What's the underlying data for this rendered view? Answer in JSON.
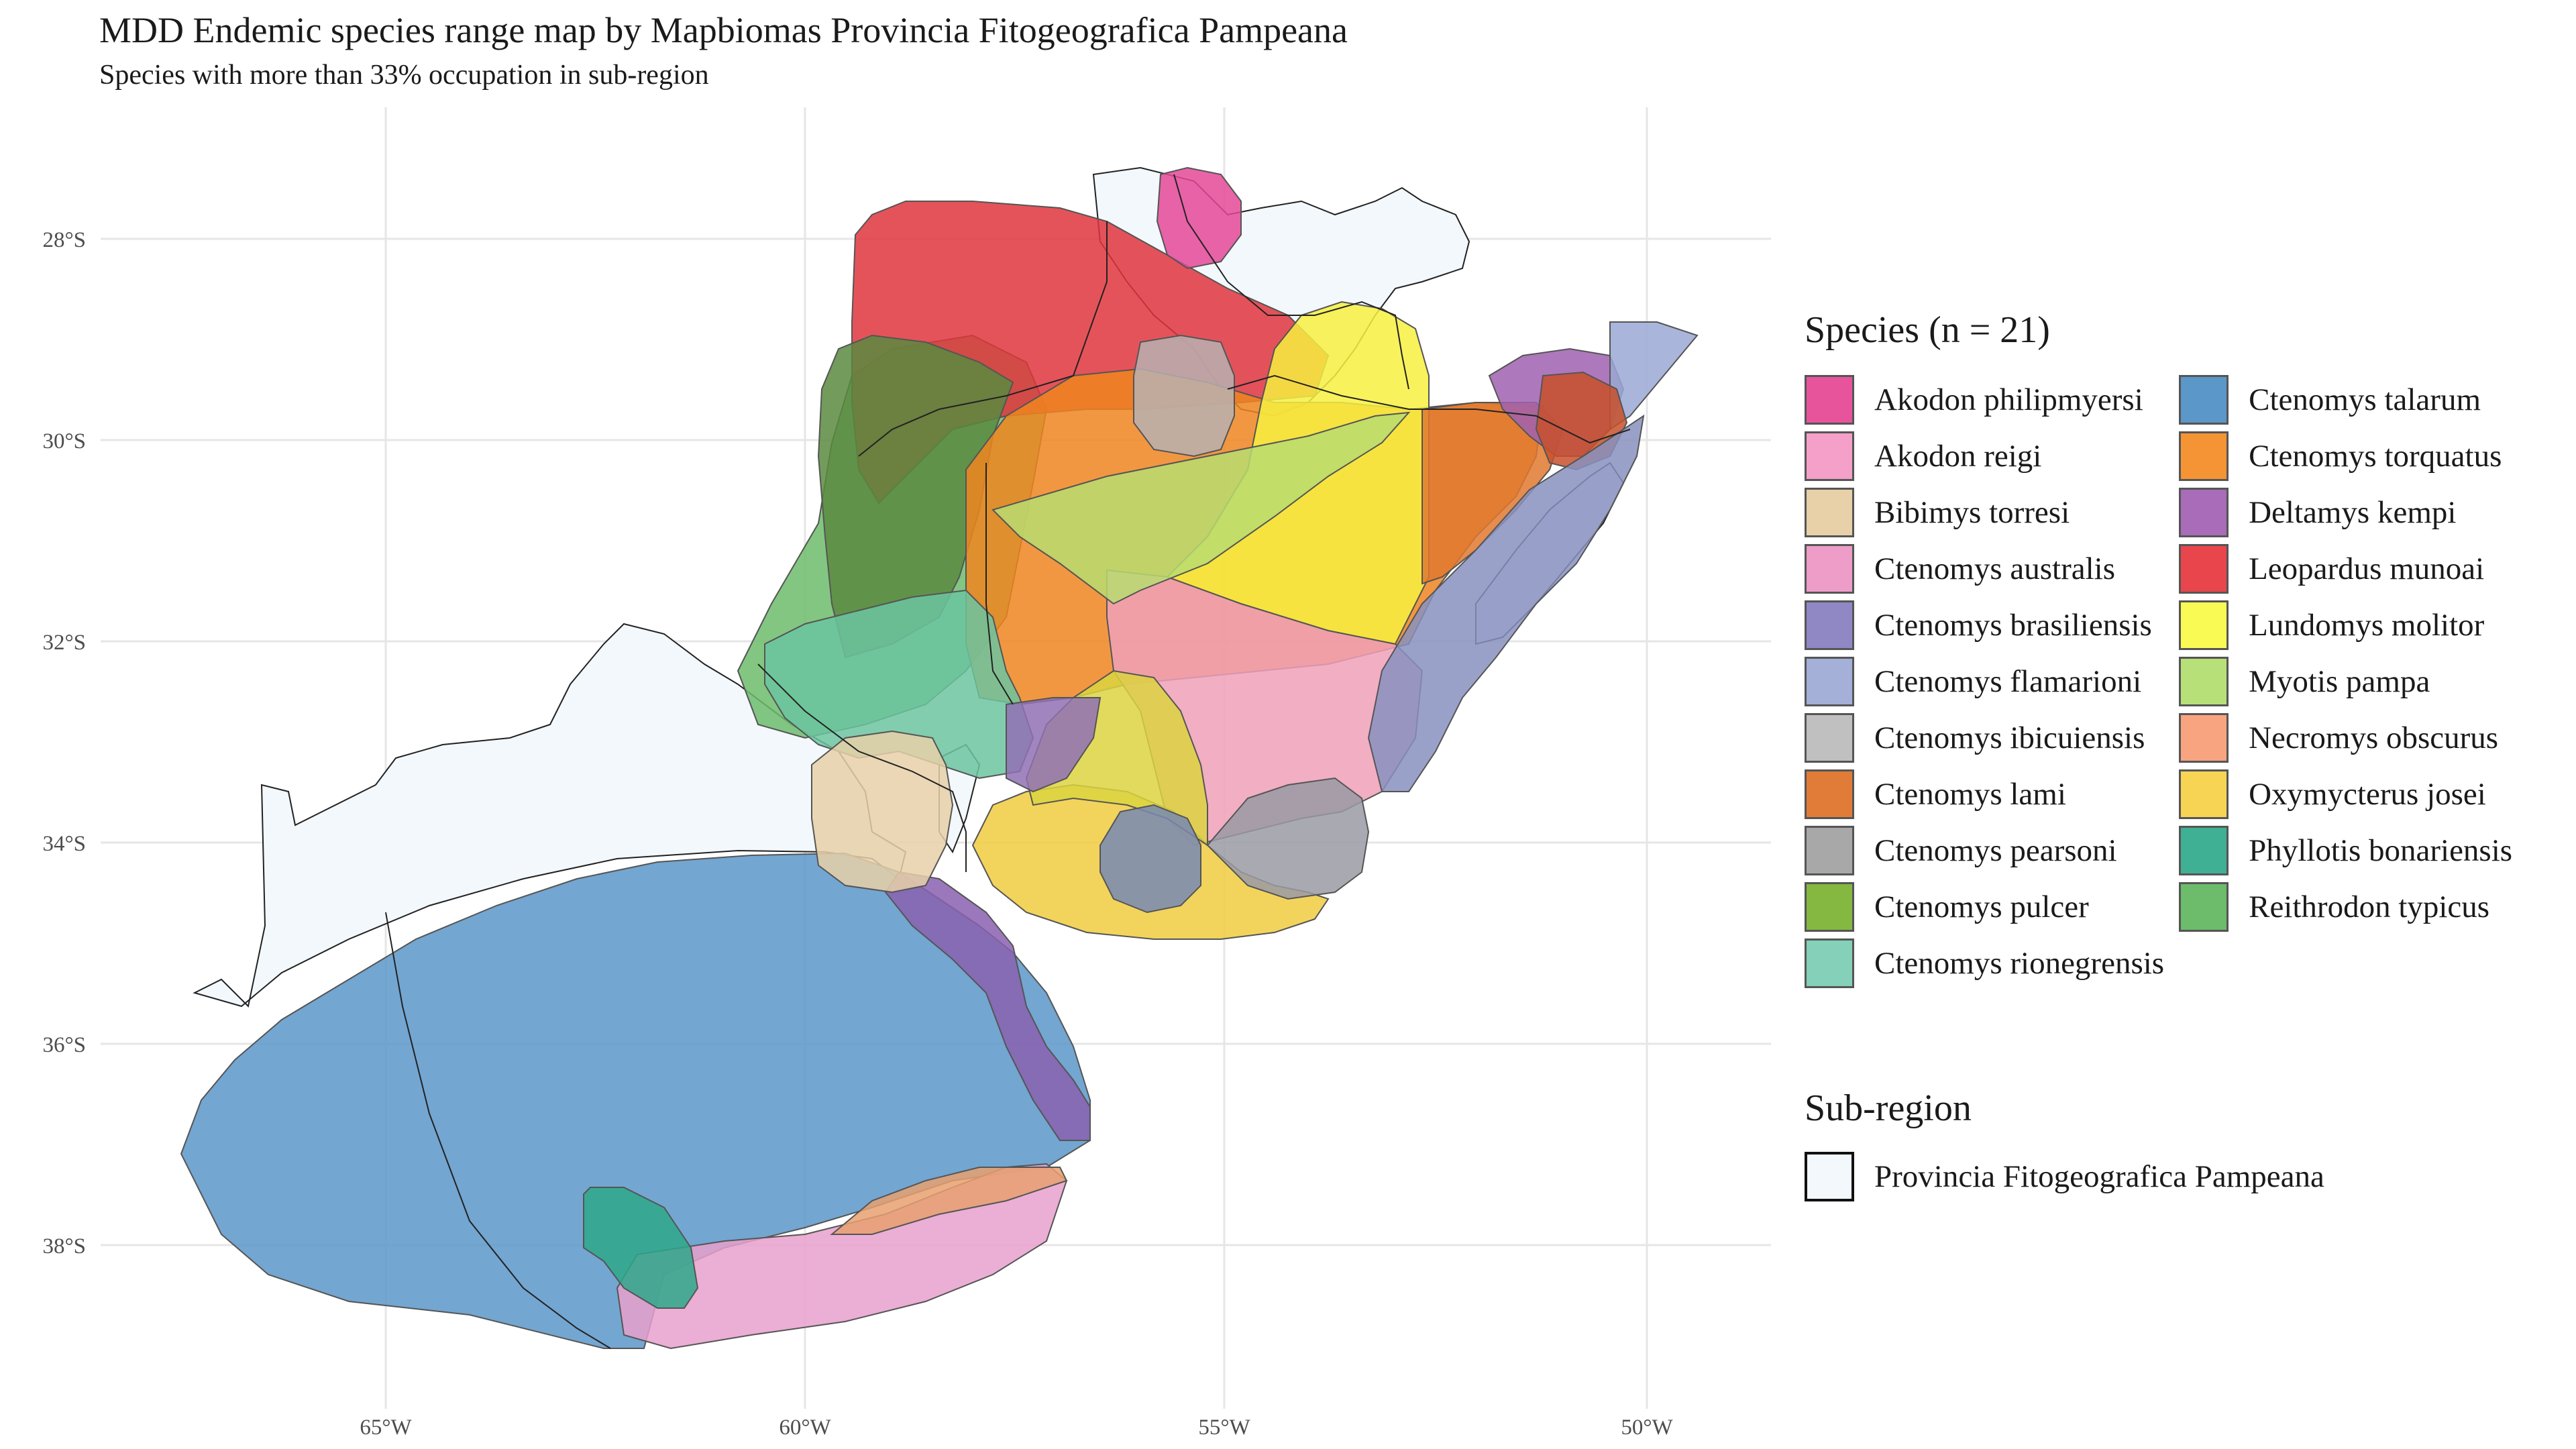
{
  "title": "MDD Endemic species range map by Mapbiomas Provincia Fitogeografica Pampeana",
  "subtitle": "Species with more than 33% occupation in sub-region",
  "axes": {
    "y_labels": [
      "28°S",
      "30°S",
      "32°S",
      "34°S",
      "36°S",
      "38°S"
    ],
    "x_labels": [
      "65°W",
      "60°W",
      "55°W",
      "50°W"
    ]
  },
  "legend": {
    "title": "Species (n = 21)",
    "col1": [
      {
        "name": "Akodon philipmyersi",
        "color": "#e7549c"
      },
      {
        "name": "Akodon reigi",
        "color": "#f4a0c8"
      },
      {
        "name": "Bibimys torresi",
        "color": "#e8d0a8"
      },
      {
        "name": "Ctenomys australis",
        "color": "#ee9cc8"
      },
      {
        "name": "Ctenomys brasiliensis",
        "color": "#9088c4"
      },
      {
        "name": "Ctenomys flamarioni",
        "color": "#a4b0d8"
      },
      {
        "name": "Ctenomys ibicuiensis",
        "color": "#c0c0c0"
      },
      {
        "name": "Ctenomys lami",
        "color": "#e07c38"
      },
      {
        "name": "Ctenomys pearsoni",
        "color": "#a8a8a8"
      },
      {
        "name": "Ctenomys pulcer",
        "color": "#84b840"
      },
      {
        "name": "Ctenomys rionegrensis",
        "color": "#84d0b8"
      }
    ],
    "col2": [
      {
        "name": "Ctenomys talarum",
        "color": "#5b97c9"
      },
      {
        "name": "Ctenomys torquatus",
        "color": "#f59434"
      },
      {
        "name": "Deltamys kempi",
        "color": "#a86cb8"
      },
      {
        "name": "Leopardus munoai",
        "color": "#e8464c"
      },
      {
        "name": "Lundomys molitor",
        "color": "#fafa54"
      },
      {
        "name": "Myotis pampa",
        "color": "#b8e078"
      },
      {
        "name": "Necromys obscurus",
        "color": "#f8a480"
      },
      {
        "name": "Oxymycterus josei",
        "color": "#f8d454"
      },
      {
        "name": "Phyllotis bonariensis",
        "color": "#40b094"
      },
      {
        "name": "Reithrodon typicus",
        "color": "#6cbc6c"
      }
    ]
  },
  "subregion": {
    "title": "Sub-region",
    "label": "Provincia Fitogeografica Pampeana",
    "color": "#f2f8fb"
  }
}
